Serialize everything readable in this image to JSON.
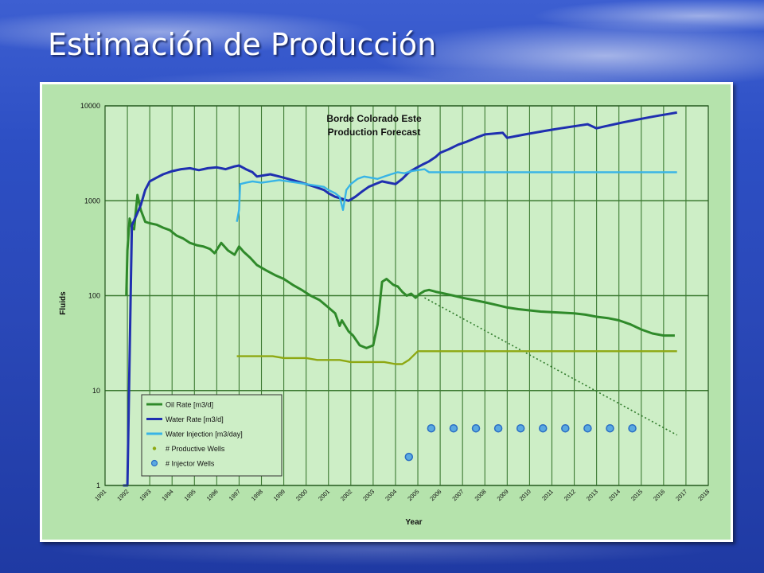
{
  "slide": {
    "title": "Estimación de Producción"
  },
  "chart_data": {
    "type": "line",
    "title": "Borde Colorado Este",
    "subtitle": "Production Forecast",
    "xlabel": "Year",
    "ylabel": "Fluids",
    "y_scale": "log",
    "ylim": [
      1,
      10000
    ],
    "y_ticks": [
      "1",
      "10",
      "100",
      "1000",
      "10000"
    ],
    "x_ticks": [
      "1991",
      "1992",
      "1993",
      "1994",
      "1995",
      "1996",
      "1997",
      "1998",
      "1999",
      "2000",
      "2001",
      "2002",
      "2003",
      "2004",
      "2005",
      "2006",
      "2007",
      "2008",
      "2009",
      "2010",
      "2011",
      "2012",
      "2013",
      "2014",
      "2015",
      "2016",
      "2017",
      "2018"
    ],
    "grid": true,
    "legend_position": "bottom-left",
    "colors": {
      "plot_bg": "#cdeec6",
      "frame_bg": "#b5e3ac",
      "grid": "#3c7a32",
      "oil": "#2f8a2a",
      "water": "#1f2fb0",
      "injection": "#38b4e6",
      "productive": "#8ea812",
      "injector_fill": "#5aa9e0",
      "injector_edge": "#2a6ec4",
      "forecast": "#2f7a2a"
    },
    "series": [
      {
        "name": "Oil Rate [m3/d]",
        "style": "line",
        "x": [
          1991.95,
          1992.0,
          1992.1,
          1992.2,
          1992.3,
          1992.45,
          1992.6,
          1992.8,
          1993.0,
          1993.3,
          1993.6,
          1993.9,
          1994.2,
          1994.5,
          1994.8,
          1995.1,
          1995.4,
          1995.7,
          1995.9,
          1996.2,
          1996.5,
          1996.8,
          1997.0,
          1997.2,
          1997.5,
          1997.8,
          1998.2,
          1998.6,
          1999.0,
          1999.4,
          1999.8,
          2000.2,
          2000.6,
          2001.0,
          2001.3,
          2001.5,
          2001.6,
          2001.9,
          2002.1,
          2002.4,
          2002.7,
          2003.0,
          2003.2,
          2003.4,
          2003.6,
          2003.9,
          2004.1,
          2004.3,
          2004.5,
          2004.7,
          2004.9,
          2005.1,
          2005.3,
          2005.5,
          2005.8,
          2006.2,
          2006.6,
          2007.0,
          2007.5,
          2008.0,
          2008.5,
          2009.0,
          2009.5,
          2010.0,
          2010.5,
          2011.0,
          2011.5,
          2012.0,
          2012.5,
          2013.0,
          2013.5,
          2014.0,
          2014.5,
          2015.0,
          2015.5,
          2016.0,
          2016.5
        ],
        "y": [
          100,
          300,
          650,
          520,
          500,
          1150,
          800,
          600,
          580,
          560,
          520,
          490,
          430,
          400,
          360,
          340,
          330,
          310,
          280,
          360,
          300,
          270,
          330,
          290,
          250,
          210,
          185,
          165,
          150,
          130,
          115,
          100,
          90,
          75,
          65,
          48,
          55,
          42,
          38,
          30,
          28,
          30,
          50,
          140,
          150,
          130,
          125,
          110,
          100,
          105,
          95,
          105,
          112,
          115,
          110,
          105,
          100,
          95,
          90,
          85,
          80,
          75,
          72,
          70,
          68,
          67,
          66,
          65,
          63,
          60,
          58,
          55,
          50,
          44,
          40,
          38,
          38
        ]
      },
      {
        "name": "Water Rate [m3/d]",
        "style": "line",
        "x": [
          1991.8,
          1992.0,
          1992.2,
          1992.4,
          1992.6,
          1992.8,
          1993.0,
          1993.3,
          1993.6,
          1994.0,
          1994.4,
          1994.8,
          1995.2,
          1995.6,
          1996.0,
          1996.4,
          1996.8,
          1997.0,
          1997.3,
          1997.6,
          1997.8,
          1998.1,
          1998.4,
          1998.8,
          1999.2,
          1999.6,
          2000.0,
          2000.4,
          2000.8,
          2001.0,
          2001.3,
          2001.6,
          2001.9,
          2002.2,
          2002.5,
          2002.8,
          2003.1,
          2003.4,
          2003.7,
          2004.0,
          2004.3,
          2004.6,
          2004.9,
          2005.2,
          2005.5,
          2005.8,
          2006.0,
          2006.4,
          2006.8,
          2007.2,
          2007.6,
          2008.0,
          2008.4,
          2008.8,
          2009.0,
          2009.4,
          2009.8,
          2010.2,
          2010.6,
          2011.0,
          2011.4,
          2011.8,
          2012.2,
          2012.6,
          2013.0,
          2013.4,
          2013.8,
          2014.2,
          2014.6,
          2015.0,
          2015.4,
          2015.8,
          2016.2,
          2016.6
        ],
        "y": [
          1,
          1,
          550,
          700,
          900,
          1300,
          1600,
          1750,
          1900,
          2050,
          2150,
          2200,
          2100,
          2200,
          2250,
          2150,
          2300,
          2350,
          2150,
          2000,
          1800,
          1850,
          1900,
          1800,
          1700,
          1600,
          1500,
          1400,
          1300,
          1200,
          1100,
          1050,
          1000,
          1100,
          1250,
          1400,
          1500,
          1600,
          1550,
          1500,
          1700,
          2000,
          2200,
          2400,
          2600,
          2900,
          3200,
          3500,
          3900,
          4200,
          4600,
          5000,
          5100,
          5200,
          4600,
          4800,
          5000,
          5200,
          5400,
          5600,
          5800,
          6000,
          6200,
          6400,
          5800,
          6100,
          6400,
          6700,
          7000,
          7300,
          7600,
          7900,
          8200,
          8500
        ]
      },
      {
        "name": "Water Injection [m3/day]",
        "style": "line",
        "x": [
          1996.9,
          1997.0,
          1997.05,
          1997.3,
          1997.6,
          1998.0,
          1998.4,
          1998.8,
          1999.2,
          1999.6,
          2000.0,
          2000.4,
          2000.8,
          2001.0,
          2001.3,
          2001.5,
          2001.65,
          2001.8,
          2002.0,
          2002.3,
          2002.6,
          2002.9,
          2003.2,
          2003.5,
          2003.8,
          2004.1,
          2004.4,
          2004.7,
          2005.0,
          2005.3,
          2005.5,
          2006.0,
          2008.0,
          2010.0,
          2012.0,
          2014.0,
          2016.0,
          2016.6
        ],
        "y": [
          600,
          800,
          1500,
          1550,
          1600,
          1550,
          1600,
          1650,
          1600,
          1550,
          1500,
          1450,
          1400,
          1300,
          1200,
          1100,
          800,
          1300,
          1500,
          1700,
          1800,
          1750,
          1700,
          1800,
          1900,
          2000,
          1950,
          2050,
          2100,
          2150,
          2000,
          2000,
          2000,
          2000,
          2000,
          2000,
          2000,
          2000
        ]
      },
      {
        "name": "# Productive Wells",
        "style": "line",
        "x": [
          1996.9,
          1997.5,
          1998.0,
          1998.5,
          1999.0,
          1999.5,
          2000.0,
          2000.5,
          2001.0,
          2001.5,
          2002.0,
          2002.5,
          2003.0,
          2003.5,
          2004.0,
          2004.3,
          2004.6,
          2005.0,
          2006.0,
          2008.0,
          2010.0,
          2012.0,
          2014.0,
          2016.0,
          2016.6
        ],
        "y": [
          23,
          23,
          23,
          23,
          22,
          22,
          22,
          21,
          21,
          21,
          20,
          20,
          20,
          20,
          19,
          19,
          21,
          26,
          26,
          26,
          26,
          26,
          26,
          26,
          26
        ]
      },
      {
        "name": "# Injector Wells",
        "style": "markers",
        "x": [
          2004.6,
          2005.6,
          2006.6,
          2007.6,
          2008.6,
          2009.6,
          2010.6,
          2011.6,
          2012.6,
          2013.6,
          2014.6
        ],
        "y": [
          2,
          4,
          4,
          4,
          4,
          4,
          4,
          4,
          4,
          4,
          4
        ]
      }
    ],
    "forecast_line": {
      "x": [
        2005.3,
        2016.6
      ],
      "y": [
        95,
        3.4
      ]
    }
  }
}
